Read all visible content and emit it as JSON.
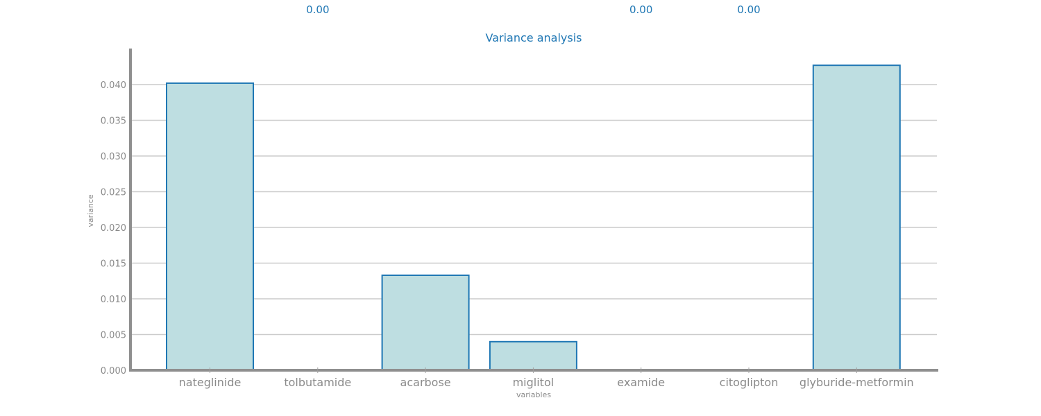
{
  "chart_data": {
    "type": "bar",
    "title": "Variance analysis",
    "xlabel": "variables",
    "ylabel": "variance",
    "categories": [
      "nateglinide",
      "tolbutamide",
      "acarbose",
      "miglitol",
      "examide",
      "citoglipton",
      "glyburide-metformin"
    ],
    "values": [
      0.0402,
      0.0,
      0.0133,
      0.004,
      0.0,
      0.0,
      0.0427
    ],
    "data_labels": [
      "",
      "0.00",
      "",
      "",
      "0.00",
      "0.00",
      ""
    ],
    "ylim": [
      0,
      0.045
    ],
    "yticks": [
      "0.000",
      "0.005",
      "0.010",
      "0.015",
      "0.020",
      "0.025",
      "0.030",
      "0.035",
      "0.040"
    ],
    "grid": true,
    "legend": false,
    "colors": {
      "bar_fill": "#bedee1",
      "bar_edge": "#1f77b4",
      "title": "#1f77b4",
      "data_label": "#1f77b4",
      "text": "#8a8a8a",
      "axis": "#8f8f8f",
      "grid": "#cccccc"
    }
  }
}
